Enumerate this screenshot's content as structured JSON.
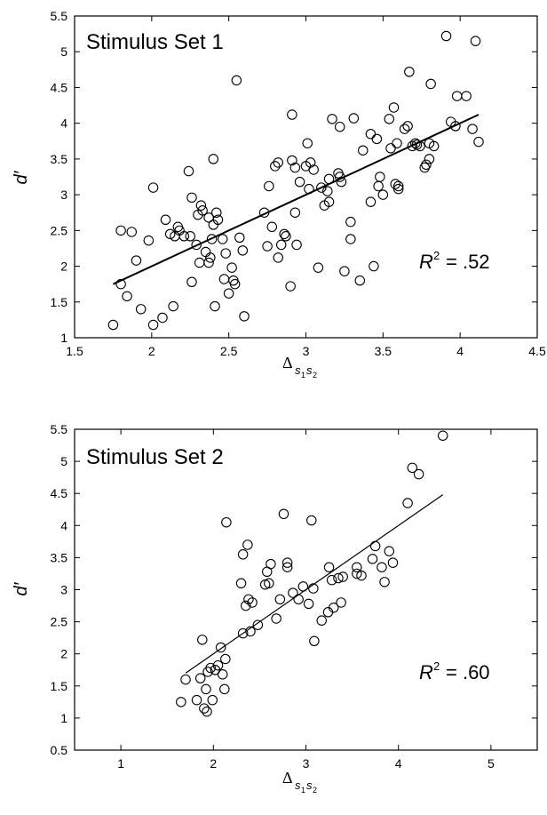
{
  "chart_data": [
    {
      "type": "scatter",
      "title": "Stimulus Set 1",
      "ylabel": "d′",
      "xlabel": "Δs1s2",
      "xlabel_main": "Δ",
      "xlabel_sub1": "s",
      "xlabel_subsub1": "1",
      "xlabel_sub2": "s",
      "xlabel_subsub2": "2",
      "annotation_r2_label": "R",
      "annotation_r2_exp": "2",
      "annotation_r2_value": "= .52",
      "xlim": [
        1.5,
        4.5
      ],
      "ylim": [
        1,
        5.5
      ],
      "xticks": [
        1.5,
        2,
        2.5,
        3,
        3.5,
        4,
        4.5
      ],
      "xtick_labels": [
        "1.5",
        "2",
        "2.5",
        "3",
        "3.5",
        "4",
        "4.5"
      ],
      "yticks": [
        1,
        1.5,
        2,
        2.5,
        3,
        3.5,
        4,
        4.5,
        5,
        5.5
      ],
      "ytick_labels": [
        "1",
        "1.5",
        "2",
        "2.5",
        "3",
        "3.5",
        "4",
        "4.5",
        "5",
        "5.5"
      ],
      "grid": false,
      "fit_line": {
        "x": [
          1.75,
          4.12
        ],
        "y": [
          1.75,
          4.12
        ]
      },
      "points": [
        [
          1.75,
          1.18
        ],
        [
          1.8,
          1.75
        ],
        [
          1.8,
          2.5
        ],
        [
          1.84,
          1.58
        ],
        [
          1.87,
          2.48
        ],
        [
          1.9,
          2.08
        ],
        [
          1.93,
          1.4
        ],
        [
          1.98,
          2.36
        ],
        [
          2.01,
          3.1
        ],
        [
          2.01,
          1.18
        ],
        [
          2.07,
          1.28
        ],
        [
          2.09,
          2.65
        ],
        [
          2.12,
          2.45
        ],
        [
          2.14,
          1.44
        ],
        [
          2.15,
          2.42
        ],
        [
          2.17,
          2.55
        ],
        [
          2.18,
          2.5
        ],
        [
          2.21,
          2.42
        ],
        [
          2.24,
          3.33
        ],
        [
          2.25,
          2.42
        ],
        [
          2.26,
          2.96
        ],
        [
          2.26,
          1.78
        ],
        [
          2.29,
          2.3
        ],
        [
          2.3,
          2.72
        ],
        [
          2.31,
          2.05
        ],
        [
          2.32,
          2.85
        ],
        [
          2.33,
          2.78
        ],
        [
          2.35,
          2.2
        ],
        [
          2.37,
          2.05
        ],
        [
          2.37,
          2.68
        ],
        [
          2.38,
          2.12
        ],
        [
          2.39,
          2.38
        ],
        [
          2.4,
          2.58
        ],
        [
          2.4,
          3.5
        ],
        [
          2.41,
          1.44
        ],
        [
          2.42,
          2.75
        ],
        [
          2.43,
          2.65
        ],
        [
          2.46,
          2.38
        ],
        [
          2.47,
          1.82
        ],
        [
          2.48,
          2.18
        ],
        [
          2.5,
          1.62
        ],
        [
          2.52,
          1.98
        ],
        [
          2.53,
          1.8
        ],
        [
          2.54,
          1.75
        ],
        [
          2.55,
          4.6
        ],
        [
          2.57,
          2.4
        ],
        [
          2.59,
          2.22
        ],
        [
          2.6,
          1.3
        ],
        [
          2.73,
          2.75
        ],
        [
          2.75,
          2.28
        ],
        [
          2.76,
          3.12
        ],
        [
          2.78,
          2.55
        ],
        [
          2.8,
          3.4
        ],
        [
          2.82,
          3.45
        ],
        [
          2.82,
          2.12
        ],
        [
          2.84,
          2.3
        ],
        [
          2.86,
          2.45
        ],
        [
          2.87,
          2.42
        ],
        [
          2.9,
          1.72
        ],
        [
          2.91,
          4.12
        ],
        [
          2.91,
          3.48
        ],
        [
          2.93,
          2.75
        ],
        [
          2.93,
          3.38
        ],
        [
          2.94,
          2.3
        ],
        [
          2.96,
          3.18
        ],
        [
          3.0,
          3.4
        ],
        [
          3.01,
          3.72
        ],
        [
          3.02,
          3.08
        ],
        [
          3.03,
          3.45
        ],
        [
          3.05,
          3.35
        ],
        [
          3.08,
          1.98
        ],
        [
          3.1,
          3.1
        ],
        [
          3.12,
          2.85
        ],
        [
          3.14,
          3.05
        ],
        [
          3.15,
          3.22
        ],
        [
          3.15,
          2.9
        ],
        [
          3.17,
          4.06
        ],
        [
          3.21,
          3.3
        ],
        [
          3.22,
          3.25
        ],
        [
          3.22,
          3.95
        ],
        [
          3.23,
          3.18
        ],
        [
          3.25,
          1.93
        ],
        [
          3.29,
          2.62
        ],
        [
          3.29,
          2.38
        ],
        [
          3.31,
          4.07
        ],
        [
          3.35,
          1.8
        ],
        [
          3.37,
          3.62
        ],
        [
          3.42,
          3.85
        ],
        [
          3.42,
          2.9
        ],
        [
          3.44,
          2.0
        ],
        [
          3.46,
          3.78
        ],
        [
          3.47,
          3.12
        ],
        [
          3.48,
          3.25
        ],
        [
          3.5,
          3.0
        ],
        [
          3.54,
          4.06
        ],
        [
          3.55,
          3.65
        ],
        [
          3.57,
          4.22
        ],
        [
          3.58,
          3.15
        ],
        [
          3.59,
          3.72
        ],
        [
          3.6,
          3.12
        ],
        [
          3.6,
          3.08
        ],
        [
          3.64,
          3.92
        ],
        [
          3.66,
          3.96
        ],
        [
          3.67,
          4.72
        ],
        [
          3.69,
          3.68
        ],
        [
          3.71,
          3.72
        ],
        [
          3.72,
          3.7
        ],
        [
          3.74,
          3.68
        ],
        [
          3.77,
          3.38
        ],
        [
          3.78,
          3.42
        ],
        [
          3.8,
          3.5
        ],
        [
          3.8,
          3.72
        ],
        [
          3.81,
          4.55
        ],
        [
          3.83,
          3.68
        ],
        [
          3.91,
          5.22
        ],
        [
          3.94,
          4.02
        ],
        [
          3.97,
          3.96
        ],
        [
          3.98,
          4.38
        ],
        [
          4.04,
          4.38
        ],
        [
          4.08,
          3.92
        ],
        [
          4.1,
          5.15
        ],
        [
          4.12,
          3.74
        ]
      ]
    },
    {
      "type": "scatter",
      "title": "Stimulus Set 2",
      "ylabel": "d′",
      "xlabel": "Δs1s2",
      "xlabel_main": "Δ",
      "xlabel_sub1": "s",
      "xlabel_subsub1": "1",
      "xlabel_sub2": "s",
      "xlabel_subsub2": "2",
      "annotation_r2_label": "R",
      "annotation_r2_exp": "2",
      "annotation_r2_value": "= .60",
      "xlim": [
        0.5,
        5.5
      ],
      "ylim": [
        0.5,
        5.5
      ],
      "xticks": [
        1,
        2,
        3,
        4,
        5
      ],
      "xtick_labels": [
        "1",
        "2",
        "3",
        "4",
        "5"
      ],
      "yticks": [
        0.5,
        1,
        1.5,
        2,
        2.5,
        3,
        3.5,
        4,
        4.5,
        5,
        5.5
      ],
      "ytick_labels": [
        "0.5",
        "1",
        "1.5",
        "2",
        "2.5",
        "3",
        "3.5",
        "4",
        "4.5",
        "5",
        "5.5"
      ],
      "grid": false,
      "fit_line": {
        "x": [
          1.7,
          4.48
        ],
        "y": [
          1.7,
          4.48
        ]
      },
      "points": [
        [
          1.65,
          1.25
        ],
        [
          1.7,
          1.6
        ],
        [
          1.82,
          1.28
        ],
        [
          1.86,
          1.62
        ],
        [
          1.88,
          2.22
        ],
        [
          1.9,
          1.15
        ],
        [
          1.92,
          1.45
        ],
        [
          1.93,
          1.1
        ],
        [
          1.94,
          1.72
        ],
        [
          1.97,
          1.78
        ],
        [
          1.99,
          1.28
        ],
        [
          2.02,
          1.75
        ],
        [
          2.05,
          1.82
        ],
        [
          2.08,
          2.1
        ],
        [
          2.1,
          1.68
        ],
        [
          2.12,
          1.45
        ],
        [
          2.13,
          1.92
        ],
        [
          2.14,
          4.05
        ],
        [
          2.3,
          3.1
        ],
        [
          2.32,
          2.32
        ],
        [
          2.32,
          3.55
        ],
        [
          2.35,
          2.75
        ],
        [
          2.37,
          3.7
        ],
        [
          2.38,
          2.85
        ],
        [
          2.4,
          2.35
        ],
        [
          2.42,
          2.8
        ],
        [
          2.48,
          2.45
        ],
        [
          2.56,
          3.08
        ],
        [
          2.58,
          3.28
        ],
        [
          2.6,
          3.1
        ],
        [
          2.62,
          3.4
        ],
        [
          2.68,
          2.55
        ],
        [
          2.72,
          2.85
        ],
        [
          2.76,
          4.18
        ],
        [
          2.8,
          3.42
        ],
        [
          2.8,
          3.35
        ],
        [
          2.86,
          2.95
        ],
        [
          2.92,
          2.85
        ],
        [
          2.97,
          3.05
        ],
        [
          3.03,
          2.78
        ],
        [
          3.06,
          4.08
        ],
        [
          3.08,
          3.02
        ],
        [
          3.09,
          2.2
        ],
        [
          3.17,
          2.52
        ],
        [
          3.24,
          2.65
        ],
        [
          3.25,
          3.35
        ],
        [
          3.28,
          3.15
        ],
        [
          3.3,
          2.72
        ],
        [
          3.35,
          3.18
        ],
        [
          3.38,
          2.8
        ],
        [
          3.4,
          3.2
        ],
        [
          3.55,
          3.25
        ],
        [
          3.55,
          3.35
        ],
        [
          3.6,
          3.22
        ],
        [
          3.72,
          3.48
        ],
        [
          3.75,
          3.68
        ],
        [
          3.82,
          3.35
        ],
        [
          3.85,
          3.12
        ],
        [
          3.9,
          3.6
        ],
        [
          3.94,
          3.42
        ],
        [
          4.1,
          4.35
        ],
        [
          4.15,
          4.9
        ],
        [
          4.22,
          4.8
        ],
        [
          4.48,
          5.4
        ]
      ]
    }
  ]
}
